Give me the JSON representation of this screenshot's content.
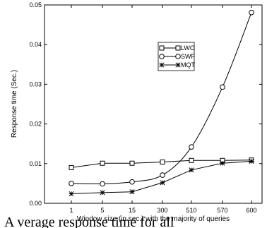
{
  "chart_data": {
    "type": "line",
    "xlabel": "Window size (in sec.) with the majority of queries",
    "ylabel": "Response time (Sec.)",
    "categories": [
      "1",
      "5",
      "15",
      "300",
      "510",
      "570",
      "600"
    ],
    "ylim": [
      0,
      0.05
    ],
    "yticks": [
      "0.00",
      "0.01",
      "0.02",
      "0.03",
      "0.04",
      "0.05"
    ],
    "grid": false,
    "legend_position": "upper-middle",
    "series": [
      {
        "name": "LWO",
        "marker": "square",
        "values": [
          0.009,
          0.0101,
          0.0101,
          0.0104,
          0.0108,
          0.0108,
          0.0109
        ]
      },
      {
        "name": "SWF",
        "marker": "circle",
        "values": [
          0.005,
          0.0049,
          0.0054,
          0.0071,
          0.0142,
          0.0293,
          0.0481
        ]
      },
      {
        "name": "MQT",
        "marker": "asterisk",
        "values": [
          0.0024,
          0.0027,
          0.0029,
          0.0052,
          0.0084,
          0.0101,
          0.0106
        ]
      }
    ]
  },
  "caption": "A verage response time for all"
}
